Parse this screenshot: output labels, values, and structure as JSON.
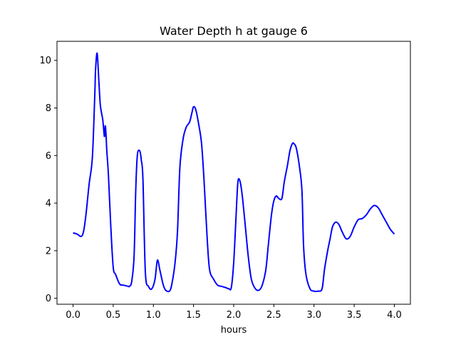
{
  "chart_data": {
    "type": "line",
    "title": "Water Depth h at gauge 6",
    "xlabel": "hours",
    "ylabel": "",
    "xlim": [
      -0.2,
      4.2
    ],
    "ylim": [
      -0.25,
      10.8
    ],
    "xticks": [
      {
        "value": 0.0,
        "label": "0.0"
      },
      {
        "value": 0.5,
        "label": "0.5"
      },
      {
        "value": 1.0,
        "label": "1.0"
      },
      {
        "value": 1.5,
        "label": "1.5"
      },
      {
        "value": 2.0,
        "label": "2.0"
      },
      {
        "value": 2.5,
        "label": "2.5"
      },
      {
        "value": 3.0,
        "label": "3.0"
      },
      {
        "value": 3.5,
        "label": "3.5"
      },
      {
        "value": 4.0,
        "label": "4.0"
      }
    ],
    "yticks": [
      {
        "value": 0,
        "label": "0"
      },
      {
        "value": 2,
        "label": "2"
      },
      {
        "value": 4,
        "label": "4"
      },
      {
        "value": 6,
        "label": "6"
      },
      {
        "value": 8,
        "label": "8"
      },
      {
        "value": 10,
        "label": "10"
      }
    ],
    "grid": false,
    "series": [
      {
        "color": "#0000ff",
        "x": [
          0.0,
          0.05,
          0.1,
          0.13,
          0.16,
          0.2,
          0.24,
          0.27,
          0.28,
          0.3,
          0.32,
          0.34,
          0.37,
          0.39,
          0.4,
          0.41,
          0.42,
          0.44,
          0.47,
          0.5,
          0.53,
          0.58,
          0.63,
          0.69,
          0.7,
          0.73,
          0.76,
          0.78,
          0.8,
          0.83,
          0.85,
          0.87,
          0.9,
          0.94,
          0.98,
          1.02,
          1.05,
          1.08,
          1.12,
          1.15,
          1.2,
          1.23,
          1.27,
          1.3,
          1.33,
          1.37,
          1.41,
          1.45,
          1.48,
          1.5,
          1.53,
          1.57,
          1.6,
          1.63,
          1.67,
          1.7,
          1.75,
          1.8,
          1.85,
          1.9,
          1.94,
          1.97,
          2.0,
          2.03,
          2.05,
          2.07,
          2.1,
          2.14,
          2.18,
          2.22,
          2.27,
          2.32,
          2.36,
          2.4,
          2.43,
          2.47,
          2.5,
          2.53,
          2.56,
          2.6,
          2.63,
          2.67,
          2.7,
          2.73,
          2.75,
          2.78,
          2.82,
          2.85,
          2.87,
          2.9,
          2.95,
          3.0,
          3.05,
          3.1,
          3.13,
          3.17,
          3.2,
          3.23,
          3.27,
          3.31,
          3.35,
          3.4,
          3.45,
          3.5,
          3.55,
          3.6,
          3.65,
          3.7,
          3.75,
          3.8,
          3.85,
          3.9,
          3.95,
          4.0
        ],
        "y": [
          2.75,
          2.7,
          2.6,
          2.8,
          3.5,
          4.8,
          5.9,
          8.5,
          9.6,
          10.3,
          9.2,
          8.1,
          7.5,
          6.8,
          7.25,
          6.9,
          6.2,
          5.2,
          3.0,
          1.3,
          1.0,
          0.6,
          0.55,
          0.5,
          0.5,
          0.7,
          1.8,
          4.5,
          6.0,
          6.2,
          5.8,
          5.0,
          1.1,
          0.5,
          0.4,
          0.8,
          1.6,
          1.2,
          0.6,
          0.35,
          0.3,
          0.6,
          1.5,
          2.8,
          5.5,
          6.7,
          7.2,
          7.4,
          7.8,
          8.05,
          7.9,
          7.2,
          6.5,
          5.0,
          2.5,
          1.2,
          0.8,
          0.55,
          0.5,
          0.45,
          0.4,
          0.45,
          1.5,
          3.5,
          4.8,
          5.0,
          4.5,
          3.2,
          1.8,
          0.8,
          0.4,
          0.35,
          0.6,
          1.2,
          2.2,
          3.5,
          4.1,
          4.3,
          4.2,
          4.2,
          4.9,
          5.6,
          6.2,
          6.5,
          6.5,
          6.3,
          5.5,
          4.5,
          2.2,
          1.0,
          0.4,
          0.3,
          0.3,
          0.4,
          1.2,
          2.0,
          2.5,
          3.0,
          3.2,
          3.1,
          2.8,
          2.5,
          2.6,
          3.0,
          3.3,
          3.35,
          3.5,
          3.75,
          3.9,
          3.8,
          3.5,
          3.2,
          2.9,
          2.7
        ]
      }
    ]
  }
}
